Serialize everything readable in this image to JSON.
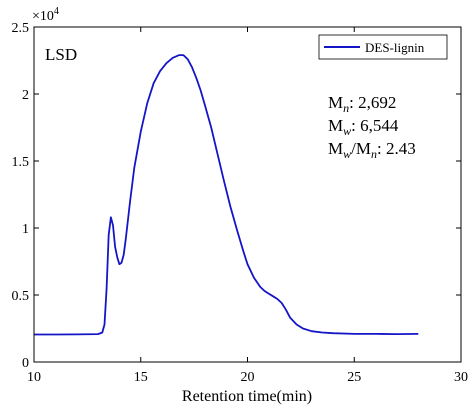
{
  "chart_data": {
    "type": "line",
    "xlabel": "Retention time(min)",
    "ylabel": "",
    "xlim": [
      10,
      30
    ],
    "ylim": [
      0,
      25000
    ],
    "x_ticks": [
      "10",
      "15",
      "20",
      "25",
      "30"
    ],
    "y_ticks": [
      "0",
      "0.5",
      "1",
      "1.5",
      "2",
      "2.5"
    ],
    "y_multiplier": "×10",
    "y_multiplier_exp": "4",
    "sample_label": "LSD",
    "grid": false,
    "legend_position": "top-right",
    "series": [
      {
        "name": "DES-lignin",
        "color": "#1515c8",
        "x": [
          10.0,
          11.0,
          12.0,
          13.0,
          13.2,
          13.3,
          13.4,
          13.5,
          13.6,
          13.7,
          13.8,
          13.9,
          14.0,
          14.1,
          14.2,
          14.3,
          14.5,
          14.7,
          15.0,
          15.3,
          15.6,
          15.9,
          16.2,
          16.5,
          16.8,
          17.0,
          17.2,
          17.4,
          17.6,
          17.8,
          18.0,
          18.3,
          18.6,
          18.9,
          19.2,
          19.5,
          19.8,
          20.0,
          20.3,
          20.6,
          20.8,
          21.0,
          21.2,
          21.4,
          21.6,
          21.8,
          22.0,
          22.3,
          22.6,
          23.0,
          23.5,
          24.0,
          25.0,
          26.0,
          27.0,
          28.0
        ],
        "y": [
          2050,
          2050,
          2060,
          2080,
          2200,
          2800,
          5500,
          9500,
          10800,
          10200,
          8600,
          7800,
          7300,
          7400,
          8000,
          9200,
          12000,
          14500,
          17200,
          19300,
          20800,
          21700,
          22300,
          22700,
          22900,
          22900,
          22600,
          22000,
          21200,
          20300,
          19200,
          17500,
          15500,
          13500,
          11600,
          9900,
          8300,
          7300,
          6300,
          5600,
          5300,
          5100,
          4900,
          4700,
          4400,
          3900,
          3300,
          2800,
          2500,
          2300,
          2200,
          2150,
          2100,
          2100,
          2080,
          2100
        ]
      }
    ],
    "annotations": [
      {
        "label": "M",
        "sub": "n",
        "rest": ":  2,692"
      },
      {
        "label": "M",
        "sub": "w",
        "rest": ":  6,544"
      },
      {
        "label": "M",
        "sub": "w",
        "mid": "/M",
        "sub2": "n",
        "rest": ":  2.43"
      }
    ]
  }
}
